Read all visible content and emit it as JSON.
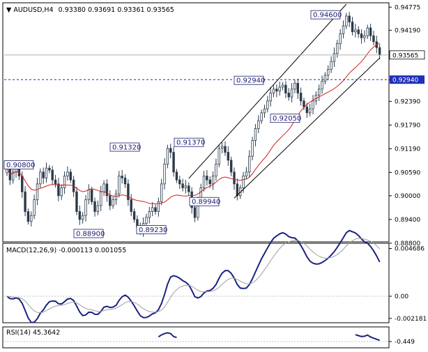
{
  "chart_data": [
    {
      "type": "candlestick",
      "title": "AUDUSD,H4",
      "ohlc_text": "0.93380 0.93691 0.93361 0.93565",
      "ylim": [
        0.8885,
        0.9485
      ],
      "y_ticks": [
        "0.94775",
        "0.94190",
        "0.93565",
        "0.92940",
        "0.92390",
        "0.91790",
        "0.91190",
        "0.90590",
        "0.90000",
        "0.89400",
        "0.88800"
      ],
      "current_price": {
        "value": 0.93565,
        "label": "0.93565"
      },
      "horizontal_level": {
        "value": 0.9294,
        "label": "0.92940",
        "style": "dashed",
        "color": "#1f2fb8"
      },
      "price_labels": [
        {
          "text": "0.90800",
          "value": 0.908
        },
        {
          "text": "0.91320",
          "value": 0.9132
        },
        {
          "text": "0.88900",
          "value": 0.889
        },
        {
          "text": "0.89230",
          "value": 0.8923
        },
        {
          "text": "0.91370",
          "value": 0.9137
        },
        {
          "text": "0.89940",
          "value": 0.8994
        },
        {
          "text": "0.92940",
          "value": 0.9294
        },
        {
          "text": "0.92050",
          "value": 0.9205
        },
        {
          "text": "0.94600",
          "value": 0.946
        }
      ],
      "close_series": [
        0.907,
        0.904,
        0.906,
        0.9075,
        0.905,
        0.901,
        0.896,
        0.8935,
        0.895,
        0.899,
        0.903,
        0.906,
        0.9045,
        0.907,
        0.9065,
        0.904,
        0.903,
        0.9,
        0.902,
        0.905,
        0.906,
        0.904,
        0.901,
        0.896,
        0.894,
        0.895,
        0.899,
        0.9015,
        0.8985,
        0.896,
        0.8975,
        0.901,
        0.903,
        0.9,
        0.8975,
        0.899,
        0.9005,
        0.905,
        0.9045,
        0.903,
        0.899,
        0.896,
        0.894,
        0.892,
        0.891,
        0.893,
        0.8945,
        0.896,
        0.897,
        0.896,
        0.8985,
        0.903,
        0.908,
        0.912,
        0.911,
        0.906,
        0.904,
        0.903,
        0.902,
        0.9025,
        0.901,
        0.897,
        0.8945,
        0.899,
        0.902,
        0.905,
        0.904,
        0.903,
        0.905,
        0.908,
        0.912,
        0.9125,
        0.911,
        0.909,
        0.906,
        0.903,
        0.9,
        0.902,
        0.905,
        0.906,
        0.91,
        0.914,
        0.917,
        0.919,
        0.921,
        0.922,
        0.924,
        0.926,
        0.927,
        0.9265,
        0.9275,
        0.928,
        0.926,
        0.925,
        0.927,
        0.9285,
        0.926,
        0.924,
        0.9225,
        0.921,
        0.922,
        0.924,
        0.9255,
        0.927,
        0.929,
        0.9305,
        0.932,
        0.934,
        0.936,
        0.9385,
        0.941,
        0.943,
        0.9455,
        0.944,
        0.9415,
        0.942,
        0.941,
        0.94,
        0.9405,
        0.9425,
        0.9405,
        0.939,
        0.9375,
        0.9356
      ],
      "moving_average": {
        "color": "#cc1f1f"
      },
      "trend_channel": {
        "color": "#000000"
      }
    },
    {
      "type": "line",
      "title": "MACD(12,26,9) -0.000113 0.001055",
      "ylim": [
        -0.0024,
        0.005
      ],
      "y_ticks": [
        "0.004686",
        "0.00",
        "-0.002181"
      ],
      "main_color": "#1a237e",
      "signal_color": "#9e9e9e"
    },
    {
      "type": "line",
      "title": "RSI(14) 45.3642",
      "y_ticks": [
        "-0.449"
      ]
    }
  ]
}
